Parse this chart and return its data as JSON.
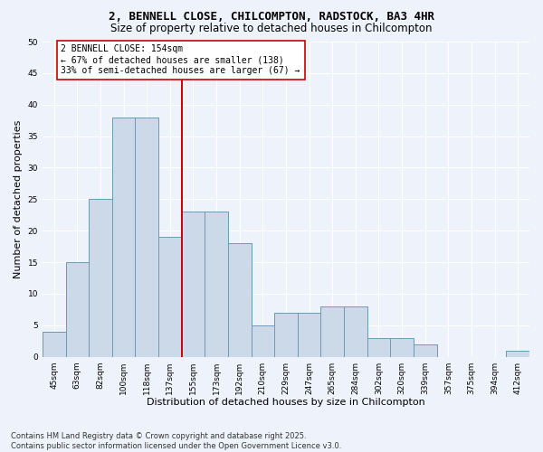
{
  "title": "2, BENNELL CLOSE, CHILCOMPTON, RADSTOCK, BA3 4HR",
  "subtitle": "Size of property relative to detached houses in Chilcompton",
  "xlabel": "Distribution of detached houses by size in Chilcompton",
  "ylabel": "Number of detached properties",
  "categories": [
    "45sqm",
    "63sqm",
    "82sqm",
    "100sqm",
    "118sqm",
    "137sqm",
    "155sqm",
    "173sqm",
    "192sqm",
    "210sqm",
    "229sqm",
    "247sqm",
    "265sqm",
    "284sqm",
    "302sqm",
    "320sqm",
    "339sqm",
    "357sqm",
    "375sqm",
    "394sqm",
    "412sqm"
  ],
  "values": [
    4,
    15,
    25,
    38,
    38,
    19,
    23,
    23,
    18,
    5,
    7,
    7,
    8,
    8,
    3,
    3,
    2,
    0,
    0,
    0,
    1
  ],
  "bar_color": "#ccd9e8",
  "bar_edge_color": "#7099b8",
  "property_line_index": 5,
  "property_line_color": "#cc0000",
  "annotation_text": "2 BENNELL CLOSE: 154sqm\n← 67% of detached houses are smaller (138)\n33% of semi-detached houses are larger (67) →",
  "annotation_box_color": "#ffffff",
  "annotation_box_edge_color": "#cc0000",
  "ylim": [
    0,
    50
  ],
  "yticks": [
    0,
    5,
    10,
    15,
    20,
    25,
    30,
    35,
    40,
    45,
    50
  ],
  "background_color": "#eef2fa",
  "grid_color": "#ffffff",
  "footer": "Contains HM Land Registry data © Crown copyright and database right 2025.\nContains public sector information licensed under the Open Government Licence v3.0.",
  "title_fontsize": 9,
  "subtitle_fontsize": 8.5,
  "xlabel_fontsize": 8,
  "ylabel_fontsize": 8,
  "tick_fontsize": 6.5,
  "annotation_fontsize": 7,
  "footer_fontsize": 6
}
